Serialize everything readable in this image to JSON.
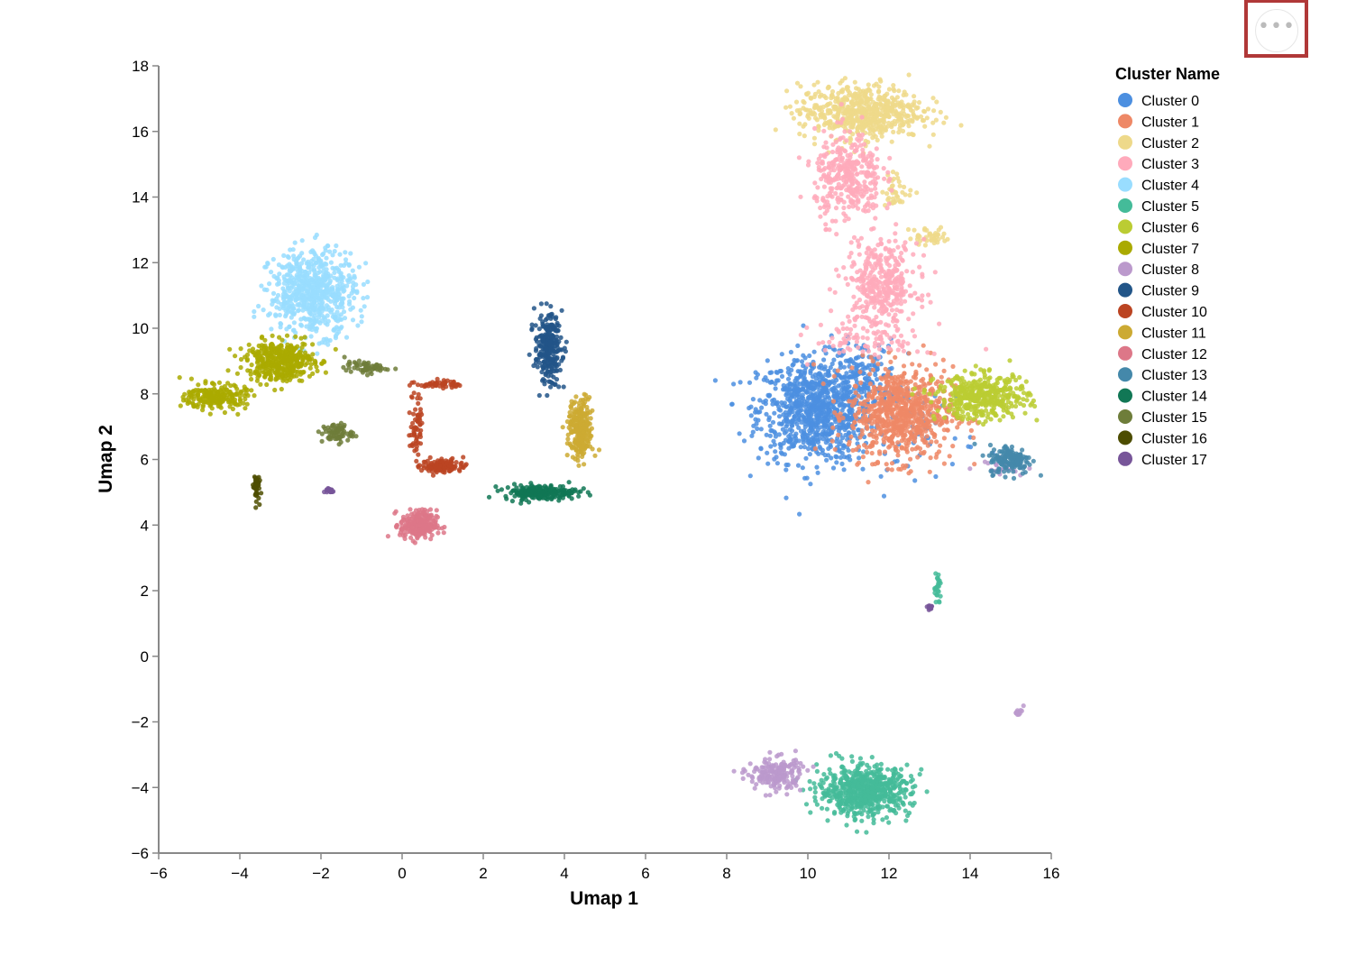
{
  "chart_data": {
    "type": "scatter",
    "title": "",
    "xlabel": "Umap 1",
    "ylabel": "Umap 2",
    "xlim": [
      -6,
      16
    ],
    "ylim": [
      -6,
      18
    ],
    "x_ticks": [
      -6,
      -4,
      -2,
      0,
      2,
      4,
      6,
      8,
      10,
      12,
      14,
      16
    ],
    "y_ticks": [
      -6,
      -4,
      -2,
      0,
      2,
      4,
      6,
      8,
      10,
      12,
      14,
      16,
      18
    ],
    "x_tick_labels": [
      "−6",
      "−4",
      "−2",
      "0",
      "2",
      "4",
      "6",
      "8",
      "10",
      "12",
      "14",
      "16"
    ],
    "y_tick_labels": [
      "−6",
      "−4",
      "−2",
      "0",
      "2",
      "4",
      "6",
      "8",
      "10",
      "12",
      "14",
      "16",
      "18"
    ],
    "grid": false,
    "legend": {
      "title": "Cluster Name",
      "placement": "right"
    },
    "series": [
      {
        "name": "Cluster 0",
        "color": "#4c8fe0",
        "regions": [
          {
            "cx": 10.2,
            "cy": 7.5,
            "sx": 0.95,
            "sy": 1.05,
            "n": 900
          },
          {
            "cx": 11.3,
            "cy": 8.6,
            "sx": 0.6,
            "sy": 0.7,
            "n": 140
          },
          {
            "cx": 12.8,
            "cy": 7.0,
            "sx": 0.9,
            "sy": 1.0,
            "n": 60
          }
        ]
      },
      {
        "name": "Cluster 1",
        "color": "#ee8866",
        "regions": [
          {
            "cx": 12.3,
            "cy": 7.4,
            "sx": 0.85,
            "sy": 0.95,
            "n": 750
          }
        ]
      },
      {
        "name": "Cluster 2",
        "color": "#eed98a",
        "regions": [
          {
            "cx": 11.3,
            "cy": 16.6,
            "sx": 1.0,
            "sy": 0.55,
            "n": 600
          },
          {
            "cx": 12.2,
            "cy": 14.2,
            "sx": 0.25,
            "sy": 0.35,
            "n": 40
          },
          {
            "cx": 13.0,
            "cy": 12.8,
            "sx": 0.35,
            "sy": 0.2,
            "n": 40
          }
        ]
      },
      {
        "name": "Cluster 3",
        "color": "#ffaabb",
        "regions": [
          {
            "cx": 11.0,
            "cy": 14.6,
            "sx": 0.55,
            "sy": 0.9,
            "n": 350
          },
          {
            "cx": 11.8,
            "cy": 11.3,
            "sx": 0.6,
            "sy": 0.9,
            "n": 380
          },
          {
            "cx": 11.5,
            "cy": 9.6,
            "sx": 0.9,
            "sy": 0.35,
            "n": 80
          }
        ]
      },
      {
        "name": "Cluster 4",
        "color": "#99ddff",
        "regions": [
          {
            "cx": -2.2,
            "cy": 11.1,
            "sx": 0.7,
            "sy": 0.85,
            "n": 650
          }
        ]
      },
      {
        "name": "Cluster 5",
        "color": "#44bb99",
        "regions": [
          {
            "cx": 11.4,
            "cy": -4.1,
            "sx": 0.75,
            "sy": 0.5,
            "n": 650
          },
          {
            "cx": 13.2,
            "cy": 2.1,
            "sx": 0.06,
            "sy": 0.3,
            "n": 25
          }
        ]
      },
      {
        "name": "Cluster 6",
        "color": "#bbcc33",
        "regions": [
          {
            "cx": 14.3,
            "cy": 7.9,
            "sx": 0.75,
            "sy": 0.45,
            "n": 420
          }
        ]
      },
      {
        "name": "Cluster 7",
        "color": "#aaaa00",
        "regions": [
          {
            "cx": -3.0,
            "cy": 9.0,
            "sx": 0.55,
            "sy": 0.4,
            "n": 420
          },
          {
            "cx": -4.6,
            "cy": 7.9,
            "sx": 0.5,
            "sy": 0.25,
            "n": 220
          }
        ]
      },
      {
        "name": "Cluster 8",
        "color": "#bb99cc",
        "regions": [
          {
            "cx": 9.2,
            "cy": -3.6,
            "sx": 0.45,
            "sy": 0.35,
            "n": 180
          },
          {
            "cx": 15.2,
            "cy": -1.7,
            "sx": 0.08,
            "sy": 0.06,
            "n": 15
          },
          {
            "cx": 14.8,
            "cy": 5.8,
            "sx": 0.4,
            "sy": 0.15,
            "n": 25
          }
        ]
      },
      {
        "name": "Cluster 9",
        "color": "#225588",
        "regions": [
          {
            "cx": 3.6,
            "cy": 9.4,
            "sx": 0.22,
            "sy": 0.7,
            "n": 260
          }
        ]
      },
      {
        "name": "Cluster 10",
        "color": "#bb4422",
        "regions": [
          {
            "cx": 1.0,
            "cy": 5.8,
            "sx": 0.35,
            "sy": 0.15,
            "n": 110
          },
          {
            "cx": 0.35,
            "cy": 7.1,
            "sx": 0.1,
            "sy": 0.7,
            "n": 60
          },
          {
            "cx": 0.9,
            "cy": 8.3,
            "sx": 0.35,
            "sy": 0.08,
            "n": 50
          }
        ]
      },
      {
        "name": "Cluster 11",
        "color": "#ccaa33",
        "regions": [
          {
            "cx": 4.4,
            "cy": 6.9,
            "sx": 0.2,
            "sy": 0.6,
            "n": 260
          }
        ]
      },
      {
        "name": "Cluster 12",
        "color": "#dd7788",
        "regions": [
          {
            "cx": 0.4,
            "cy": 4.0,
            "sx": 0.3,
            "sy": 0.3,
            "n": 230
          }
        ]
      },
      {
        "name": "Cluster 13",
        "color": "#4488aa",
        "regions": [
          {
            "cx": 15.0,
            "cy": 6.0,
            "sx": 0.35,
            "sy": 0.3,
            "n": 150
          }
        ]
      },
      {
        "name": "Cluster 14",
        "color": "#117755",
        "regions": [
          {
            "cx": 3.4,
            "cy": 5.0,
            "sx": 0.6,
            "sy": 0.15,
            "n": 200
          }
        ]
      },
      {
        "name": "Cluster 15",
        "color": "#6e7d3a",
        "regions": [
          {
            "cx": -1.6,
            "cy": 6.8,
            "sx": 0.25,
            "sy": 0.2,
            "n": 70
          },
          {
            "cx": -0.9,
            "cy": 8.8,
            "sx": 0.35,
            "sy": 0.12,
            "n": 60
          }
        ]
      },
      {
        "name": "Cluster 16",
        "color": "#4d4d00",
        "regions": [
          {
            "cx": -3.6,
            "cy": 5.2,
            "sx": 0.05,
            "sy": 0.3,
            "n": 45
          }
        ]
      },
      {
        "name": "Cluster 17",
        "color": "#775599",
        "regions": [
          {
            "cx": -1.8,
            "cy": 5.05,
            "sx": 0.08,
            "sy": 0.06,
            "n": 20
          },
          {
            "cx": 13.0,
            "cy": 1.5,
            "sx": 0.06,
            "sy": 0.05,
            "n": 15
          }
        ]
      }
    ]
  },
  "toolbar": {
    "actions_label": "•••"
  }
}
